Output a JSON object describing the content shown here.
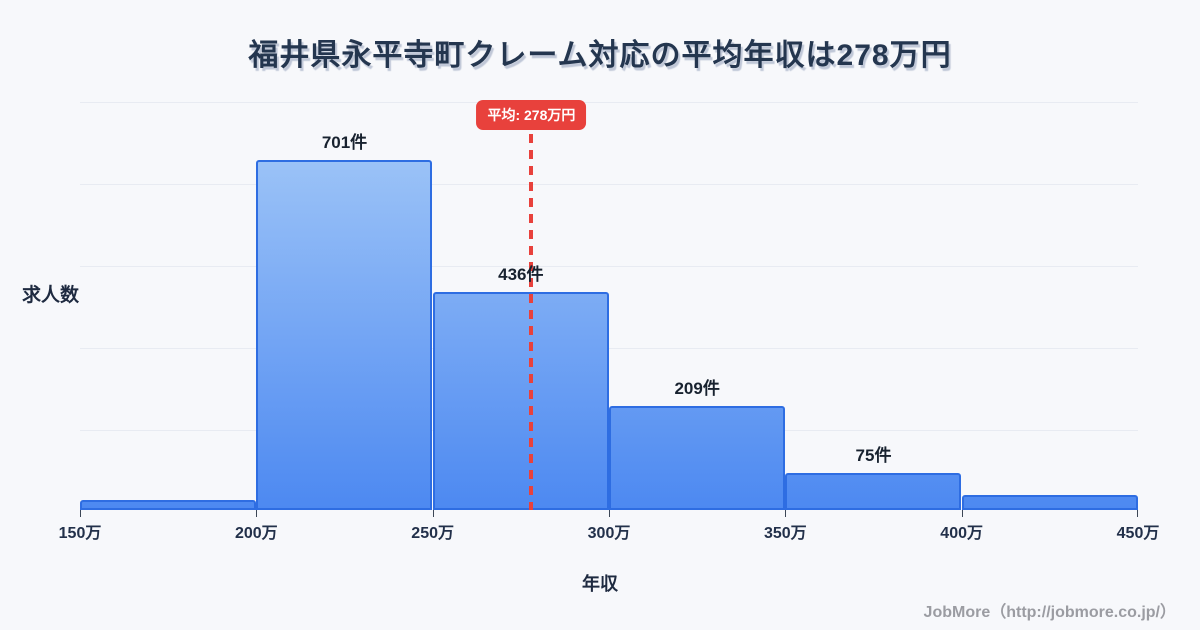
{
  "title": "福井県永平寺町クレーム対応の平均年収は278万円",
  "chart_data": {
    "type": "bar",
    "subtype": "histogram",
    "title": "福井県永平寺町クレーム対応の平均年収は278万円",
    "xlabel": "年収",
    "ylabel": "求人数",
    "grid": true,
    "bin_edge_labels": [
      "150万",
      "200万",
      "250万",
      "300万",
      "350万",
      "400万",
      "450万"
    ],
    "bin_edges_man_yen": [
      150,
      200,
      250,
      300,
      350,
      400,
      450
    ],
    "values": [
      20,
      701,
      436,
      209,
      75,
      30
    ],
    "value_labels": [
      "",
      "701件",
      "436件",
      "209件",
      "75件",
      ""
    ],
    "ylim": [
      0,
      817
    ],
    "average_line": {
      "label": "平均: 278万円",
      "value_man_yen": 278,
      "color": "#e8413c",
      "style": "dashed"
    },
    "colors": {
      "bar_fill_top": "#a8ccf8",
      "bar_fill_bottom": "#4d89f1",
      "bar_border": "#2e6de2",
      "background": "#f7f8fb",
      "gridline": "#e8ebf2",
      "title_text": "#24364f"
    }
  },
  "footer": {
    "credit": "JobMore（http://jobmore.co.jp/）"
  }
}
